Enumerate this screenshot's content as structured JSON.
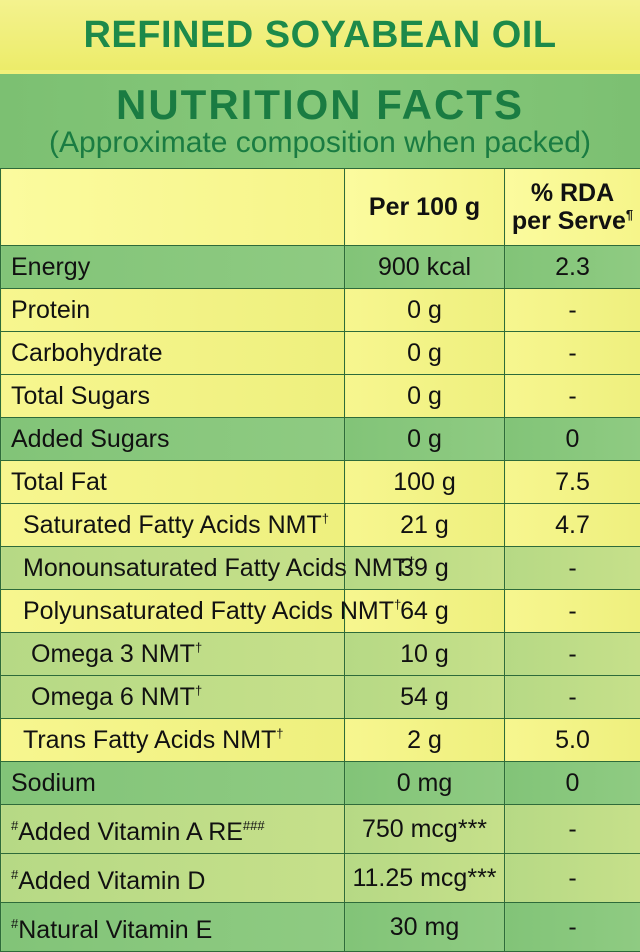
{
  "product_title": "REFINED SOYABEAN OIL",
  "heading": "NUTRITION FACTS",
  "subheading": "(Approximate composition when packed)",
  "header": {
    "col_nutrient": "",
    "col_per100": "Per 100 g",
    "col_rda_line1": "% RDA",
    "col_rda_line2": "per Serve",
    "col_rda_mark": "¶"
  },
  "rows": [
    {
      "prefix": "",
      "label": "Energy",
      "mark": "",
      "per100": "900 kcal",
      "rda": "2.3"
    },
    {
      "prefix": "",
      "label": "Protein",
      "mark": "",
      "per100": "0 g",
      "rda": "-"
    },
    {
      "prefix": "",
      "label": "Carbohydrate",
      "mark": "",
      "per100": "0 g",
      "rda": "-"
    },
    {
      "prefix": "",
      "label": "Total Sugars",
      "mark": "",
      "per100": "0 g",
      "rda": "-"
    },
    {
      "prefix": "",
      "label": "Added Sugars",
      "mark": "",
      "per100": "0 g",
      "rda": "0"
    },
    {
      "prefix": "",
      "label": "Total Fat",
      "mark": "",
      "per100": "100 g",
      "rda": "7.5"
    },
    {
      "prefix": "",
      "label": "Saturated Fatty Acids NMT",
      "mark": "†",
      "per100": "21 g",
      "rda": "4.7"
    },
    {
      "prefix": "",
      "label": "Monounsaturated Fatty Acids NMT",
      "mark": "†",
      "per100": "39 g",
      "rda": "-"
    },
    {
      "prefix": "",
      "label": "Polyunsaturated Fatty Acids NMT",
      "mark": "†",
      "per100": "64 g",
      "rda": "-"
    },
    {
      "prefix": "",
      "label": "Omega 3 NMT",
      "mark": "†",
      "per100": "10 g",
      "rda": "-"
    },
    {
      "prefix": "",
      "label": "Omega 6 NMT",
      "mark": "†",
      "per100": "54 g",
      "rda": "-"
    },
    {
      "prefix": "",
      "label": "Trans Fatty Acids NMT",
      "mark": "†",
      "per100": "2 g",
      "rda": "5.0"
    },
    {
      "prefix": "",
      "label": "Sodium",
      "mark": "",
      "per100": "0 mg",
      "rda": "0"
    },
    {
      "prefix": "#",
      "label": "Added Vitamin A RE",
      "mark": "###",
      "per100": "750 mcg***",
      "rda": "-"
    },
    {
      "prefix": "#",
      "label": "Added Vitamin D",
      "mark": "",
      "per100": "11.25 mcg***",
      "rda": "-"
    },
    {
      "prefix": "#",
      "label": "Natural Vitamin E",
      "mark": "",
      "per100": "30 mg",
      "rda": "-"
    }
  ]
}
